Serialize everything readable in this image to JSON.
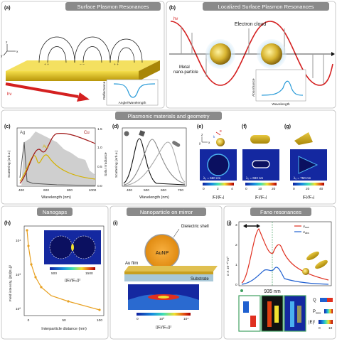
{
  "sections": {
    "surface_plasmon": "Surface Plasmon Resonances",
    "localized_sp": "Localized Surface Plasmon Resonances",
    "materials": "Plasmonic materials and geometry",
    "nanogaps": "Nanogaps",
    "nanoparticle_mirror": "Nanoparticle on mirror",
    "fano": "Fano resonances"
  },
  "panel_labels": {
    "a": "(a)",
    "b": "(b)",
    "c": "(c)",
    "d": "(d)",
    "e": "(e)",
    "f": "(f)",
    "g": "(g)",
    "h": "(h)",
    "i": "(i)",
    "j": "(j)"
  },
  "panel_a": {
    "hv": "hν",
    "axes": {
      "x": "x",
      "y": "y",
      "z": "z"
    },
    "inset_ylabel": "Reflectance",
    "inset_xlabel": "Angle/Wavelength"
  },
  "panel_b": {
    "hv": "hν",
    "electron_cloud": "Electron cloud",
    "metal_np": "Metal\nnano-particle",
    "metal_np_line1": "Metal",
    "metal_np_line2": "nano-particle",
    "inset_ylabel": "Absorbance",
    "inset_xlabel": "Wavelength"
  },
  "panel_c": {
    "ag": "Ag",
    "au": "Au",
    "cu": "Cu",
    "ylabel_left": "Scattering (arb.u.)",
    "ylabel_right": "Solar irradiance",
    "xlabel": "Wavelength (nm)",
    "xticks": [
      "400",
      "600",
      "800",
      "1000"
    ],
    "yticks_right": [
      "0.0",
      "0.5",
      "1.0",
      "1.5"
    ]
  },
  "panel_d": {
    "ylabel": "Scattering (arb.u.)",
    "xlabel": "Wavelength (nm)",
    "xticks": [
      "400",
      "500",
      "600",
      "700"
    ]
  },
  "panel_e": {
    "lambda": "λ₀ = 660 nm",
    "cbar_ticks": [
      "0",
      "2",
      "4"
    ],
    "cbar_label": "|E|/|E₀|",
    "axes": {
      "z": "z",
      "y": "y",
      "x": "x",
      "k": "k",
      "e": "E"
    }
  },
  "panel_f": {
    "lambda": "λ₀ = 693 nm",
    "cbar_ticks": [
      "0",
      "10",
      "20"
    ],
    "cbar_label": "|E|/|E₀|"
  },
  "panel_g": {
    "lambda": "λ₀ = 750 nm",
    "cbar_ticks": [
      "0",
      "20",
      "40"
    ],
    "cbar_label": "|E|/|E₀|"
  },
  "panel_h": {
    "ylabel": "Field intensity, {|E|/|E₀|}²",
    "xlabel": "Interparticle distance (nm)",
    "yticks": [
      "10²",
      "10³",
      "10⁴"
    ],
    "xticks": [
      "0",
      "50",
      "100"
    ],
    "inset_ticks": [
      "500",
      "1500"
    ],
    "inset_label": "{|E|/|E₀|}²"
  },
  "panel_i": {
    "aunp": "AuNP",
    "dielectric": "Dielectric shell",
    "au_film": "Au film",
    "substrate": "Substrate",
    "cbar_ticks": [
      "0",
      "10²",
      "10⁴"
    ],
    "cbar_label": "{|E|/|E₀|}²"
  },
  "panel_j": {
    "ylabel": "σ X 10⁻¹³ m²",
    "yticks": [
      "0",
      "1",
      "2",
      "3"
    ],
    "legend": [
      "σ_sca",
      "σ_abs"
    ],
    "legend_sca": "σ",
    "legend_sca_sub": "sca",
    "legend_abs": "σ",
    "legend_abs_sub": "abs",
    "wavelength": "935 nm",
    "labels": {
      "q": "Q",
      "ploss": "P",
      "ploss_sub": "loss",
      "e2": "|E|²"
    },
    "e2_ticks": [
      "0",
      "10"
    ]
  },
  "colors": {
    "header": "#8a8a8a",
    "gold": "#d4b200",
    "copper": "#a01818",
    "irradiance": "#c8c8c8",
    "absorbance": "#2a9bd8",
    "fano_red": "#e03020",
    "fano_blue": "#2060d0",
    "mirror_highlight": "#e8a020"
  }
}
